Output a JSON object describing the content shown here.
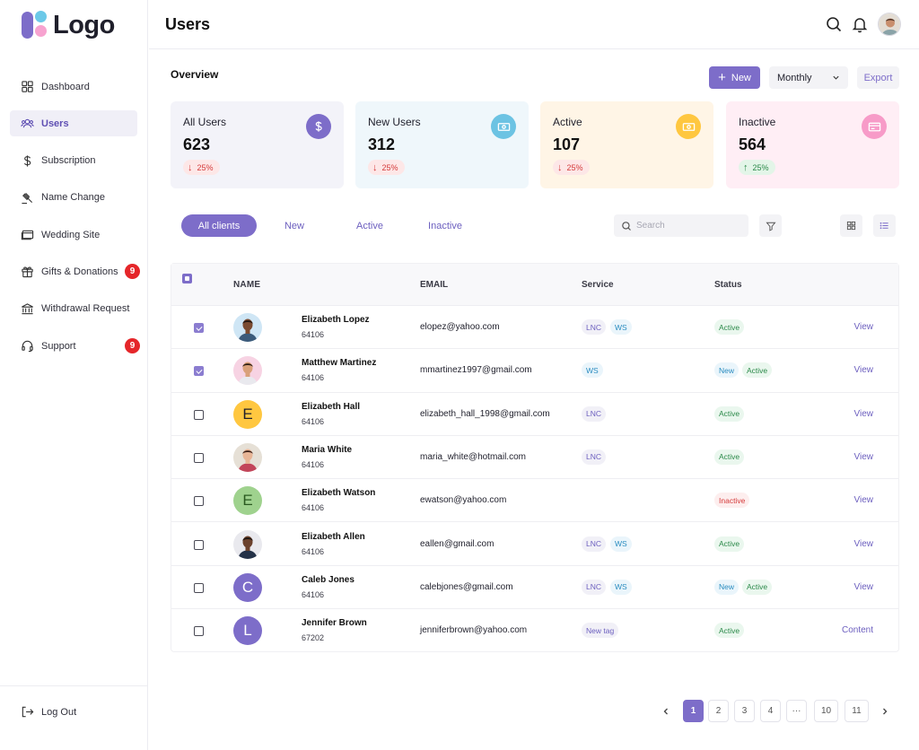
{
  "app": {
    "logo_text": "Logo"
  },
  "sidebar": {
    "items": [
      {
        "label": "Dashboard",
        "icon": "grid-icon"
      },
      {
        "label": "Users",
        "icon": "users-icon",
        "active": true
      },
      {
        "label": "Subscription",
        "icon": "dollar-icon"
      },
      {
        "label": "Name Change",
        "icon": "gavel-icon"
      },
      {
        "label": "Wedding Site",
        "icon": "browser-icon"
      },
      {
        "label": "Gifts & Donations",
        "icon": "gift-icon",
        "badge": "9"
      },
      {
        "label": "Withdrawal Request",
        "icon": "bank-icon"
      },
      {
        "label": "Support",
        "icon": "headset-icon",
        "badge": "9"
      }
    ],
    "logout": "Log Out"
  },
  "header": {
    "title": "Users"
  },
  "overview": {
    "title": "Overview",
    "new_button": "New",
    "period": "Monthly",
    "export_button": "Export",
    "cards": [
      {
        "label": "All Users",
        "value": "623",
        "delta": "25%",
        "direction": "down",
        "bg": "#f3f3f9",
        "icon_bg": "#7d6dc9",
        "icon": "dollar-icon"
      },
      {
        "label": "New Users",
        "value": "312",
        "delta": "25%",
        "direction": "down",
        "bg": "#eff7fb",
        "icon_bg": "#6cc3e3",
        "icon": "cash-icon"
      },
      {
        "label": "Active",
        "value": "107",
        "delta": "25%",
        "direction": "down",
        "bg": "#fff5e6",
        "icon_bg": "#ffc740",
        "icon": "cash-icon"
      },
      {
        "label": "Inactive",
        "value": "564",
        "delta": "25%",
        "direction": "up",
        "bg": "#ffeef5",
        "icon_bg": "#f79bc8",
        "icon": "card-icon"
      }
    ]
  },
  "filters": {
    "tabs": [
      "All clients",
      "New",
      "Active",
      "Inactive"
    ],
    "search_placeholder": "Search"
  },
  "table": {
    "headers": {
      "name": "NAME",
      "email": "EMAIL",
      "service": "Service",
      "status": "Status"
    },
    "rows": [
      {
        "checked": true,
        "name": "Elizabeth Lopez",
        "id": "64106",
        "email": "elopez@yahoo.com",
        "services": [
          "LNC",
          "WS"
        ],
        "statuses": [
          "Active"
        ],
        "action": "View",
        "avatar": "photo",
        "avatar_bg": "#cfe6f5"
      },
      {
        "checked": true,
        "name": "Matthew Martinez",
        "id": "64106",
        "email": "mmartinez1997@gmail.com",
        "services": [
          "WS"
        ],
        "statuses": [
          "New",
          "Active"
        ],
        "action": "View",
        "avatar": "photo",
        "avatar_bg": "#f7d3e3"
      },
      {
        "checked": false,
        "name": "Elizabeth Hall",
        "id": "64106",
        "email": "elizabeth_hall_1998@gmail.com",
        "services": [
          "LNC"
        ],
        "statuses": [
          "Active"
        ],
        "action": "View",
        "avatar": "E",
        "avatar_bg": "#ffc740",
        "avatar_fg": "#1f1f2b"
      },
      {
        "checked": false,
        "name": "Maria White",
        "id": "64106",
        "email": "maria_white@hotmail.com",
        "services": [
          "LNC"
        ],
        "statuses": [
          "Active"
        ],
        "action": "View",
        "avatar": "photo",
        "avatar_bg": "#e6e0d6"
      },
      {
        "checked": false,
        "name": "Elizabeth Watson",
        "id": "64106",
        "email": "ewatson@yahoo.com",
        "services": [],
        "statuses": [
          "Inactive"
        ],
        "action": "View",
        "avatar": "E",
        "avatar_bg": "#9fd28e",
        "avatar_fg": "#2a5a20"
      },
      {
        "checked": false,
        "name": "Elizabeth Allen",
        "id": "64106",
        "email": "eallen@gmail.com",
        "services": [
          "LNC",
          "WS"
        ],
        "statuses": [
          "Active"
        ],
        "action": "View",
        "avatar": "photo",
        "avatar_bg": "#e9e9ee"
      },
      {
        "checked": false,
        "name": "Caleb Jones",
        "id": "64106",
        "email": "calebjones@gmail.com",
        "services": [
          "LNC",
          "WS"
        ],
        "statuses": [
          "New",
          "Active"
        ],
        "action": "View",
        "avatar": "C",
        "avatar_bg": "#7d6dc9",
        "avatar_fg": "#ffffff"
      },
      {
        "checked": false,
        "name": "Jennifer Brown",
        "id": "67202",
        "email": "jenniferbrown@yahoo.com",
        "services": [
          "New tag"
        ],
        "statuses": [
          "Active"
        ],
        "action": "Content",
        "avatar": "L",
        "avatar_bg": "#7d6dc9",
        "avatar_fg": "#ffffff"
      }
    ]
  },
  "pagination": {
    "pages": [
      "1",
      "2",
      "3",
      "4",
      "···",
      "10",
      "11"
    ],
    "current": "1",
    "prev_icon": "chevron-left-icon",
    "next_icon": "chevron-right-icon"
  }
}
